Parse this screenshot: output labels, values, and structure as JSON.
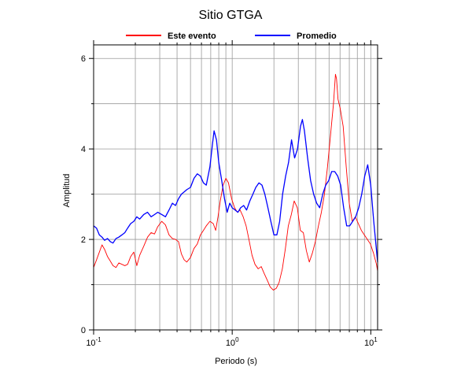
{
  "chart_data": {
    "type": "line",
    "title": "Sitio GTGA",
    "xlabel": "Periodo (s)",
    "ylabel": "Amplitud",
    "x_scale": "log",
    "xlim": [
      0.1,
      11.2
    ],
    "ylim": [
      0,
      6.3
    ],
    "grid": true,
    "legend_position": "top-center",
    "x_tick_labels": [
      {
        "base": "10",
        "exp": "-1",
        "value": 0.1
      },
      {
        "base": "10",
        "exp": "0",
        "value": 1
      },
      {
        "base": "10",
        "exp": "1",
        "value": 10
      }
    ],
    "y_tick_labels": [
      "0",
      "2",
      "4",
      "6"
    ],
    "y_tick_values": [
      0,
      2,
      4,
      6
    ],
    "series": [
      {
        "name": "Este evento",
        "color": "#ff0000",
        "points": [
          [
            0.1,
            1.38
          ],
          [
            0.105,
            1.55
          ],
          [
            0.11,
            1.72
          ],
          [
            0.115,
            1.88
          ],
          [
            0.12,
            1.78
          ],
          [
            0.126,
            1.62
          ],
          [
            0.132,
            1.52
          ],
          [
            0.138,
            1.42
          ],
          [
            0.145,
            1.38
          ],
          [
            0.152,
            1.48
          ],
          [
            0.16,
            1.45
          ],
          [
            0.168,
            1.42
          ],
          [
            0.176,
            1.45
          ],
          [
            0.185,
            1.62
          ],
          [
            0.195,
            1.72
          ],
          [
            0.205,
            1.42
          ],
          [
            0.215,
            1.65
          ],
          [
            0.23,
            1.85
          ],
          [
            0.245,
            2.05
          ],
          [
            0.26,
            2.15
          ],
          [
            0.275,
            2.12
          ],
          [
            0.29,
            2.28
          ],
          [
            0.31,
            2.4
          ],
          [
            0.33,
            2.32
          ],
          [
            0.35,
            2.1
          ],
          [
            0.37,
            2.02
          ],
          [
            0.39,
            2.0
          ],
          [
            0.41,
            1.95
          ],
          [
            0.43,
            1.68
          ],
          [
            0.45,
            1.55
          ],
          [
            0.47,
            1.5
          ],
          [
            0.5,
            1.6
          ],
          [
            0.53,
            1.8
          ],
          [
            0.56,
            1.9
          ],
          [
            0.59,
            2.1
          ],
          [
            0.62,
            2.2
          ],
          [
            0.65,
            2.3
          ],
          [
            0.69,
            2.4
          ],
          [
            0.73,
            2.35
          ],
          [
            0.76,
            2.2
          ],
          [
            0.79,
            2.5
          ],
          [
            0.82,
            2.85
          ],
          [
            0.86,
            3.2
          ],
          [
            0.9,
            3.35
          ],
          [
            0.94,
            3.25
          ],
          [
            0.99,
            2.9
          ],
          [
            1.04,
            2.7
          ],
          [
            1.09,
            2.6
          ],
          [
            1.14,
            2.65
          ],
          [
            1.2,
            2.5
          ],
          [
            1.26,
            2.3
          ],
          [
            1.32,
            2.0
          ],
          [
            1.39,
            1.65
          ],
          [
            1.46,
            1.45
          ],
          [
            1.54,
            1.35
          ],
          [
            1.62,
            1.4
          ],
          [
            1.7,
            1.25
          ],
          [
            1.79,
            1.1
          ],
          [
            1.88,
            0.95
          ],
          [
            1.98,
            0.88
          ],
          [
            2.08,
            0.92
          ],
          [
            2.18,
            1.05
          ],
          [
            2.3,
            1.35
          ],
          [
            2.42,
            1.8
          ],
          [
            2.54,
            2.3
          ],
          [
            2.67,
            2.55
          ],
          [
            2.8,
            2.85
          ],
          [
            2.95,
            2.7
          ],
          [
            3.1,
            2.2
          ],
          [
            3.26,
            2.15
          ],
          [
            3.43,
            1.75
          ],
          [
            3.6,
            1.5
          ],
          [
            3.79,
            1.7
          ],
          [
            3.98,
            1.95
          ],
          [
            4.19,
            2.3
          ],
          [
            4.4,
            2.6
          ],
          [
            4.63,
            3.0
          ],
          [
            4.87,
            3.6
          ],
          [
            5.12,
            4.3
          ],
          [
            5.38,
            5.0
          ],
          [
            5.56,
            5.65
          ],
          [
            5.66,
            5.55
          ],
          [
            5.8,
            5.1
          ],
          [
            6.01,
            4.9
          ],
          [
            6.32,
            4.5
          ],
          [
            6.65,
            3.6
          ],
          [
            6.99,
            2.8
          ],
          [
            7.35,
            2.4
          ],
          [
            7.73,
            2.5
          ],
          [
            8.13,
            2.35
          ],
          [
            8.55,
            2.2
          ],
          [
            8.99,
            2.1
          ],
          [
            9.45,
            2.0
          ],
          [
            9.94,
            1.9
          ],
          [
            10.45,
            1.7
          ],
          [
            10.99,
            1.45
          ],
          [
            11.2,
            1.3
          ]
        ]
      },
      {
        "name": "Promedio",
        "color": "#0000ff",
        "points": [
          [
            0.1,
            2.3
          ],
          [
            0.105,
            2.25
          ],
          [
            0.11,
            2.1
          ],
          [
            0.115,
            2.05
          ],
          [
            0.12,
            1.98
          ],
          [
            0.126,
            2.02
          ],
          [
            0.132,
            1.95
          ],
          [
            0.138,
            1.92
          ],
          [
            0.145,
            2.02
          ],
          [
            0.152,
            2.05
          ],
          [
            0.16,
            2.1
          ],
          [
            0.168,
            2.15
          ],
          [
            0.176,
            2.25
          ],
          [
            0.185,
            2.35
          ],
          [
            0.195,
            2.4
          ],
          [
            0.205,
            2.5
          ],
          [
            0.215,
            2.45
          ],
          [
            0.23,
            2.55
          ],
          [
            0.245,
            2.6
          ],
          [
            0.26,
            2.5
          ],
          [
            0.275,
            2.55
          ],
          [
            0.29,
            2.6
          ],
          [
            0.31,
            2.55
          ],
          [
            0.33,
            2.5
          ],
          [
            0.35,
            2.65
          ],
          [
            0.37,
            2.8
          ],
          [
            0.39,
            2.75
          ],
          [
            0.41,
            2.9
          ],
          [
            0.43,
            3.0
          ],
          [
            0.45,
            3.05
          ],
          [
            0.47,
            3.1
          ],
          [
            0.5,
            3.15
          ],
          [
            0.53,
            3.35
          ],
          [
            0.56,
            3.45
          ],
          [
            0.59,
            3.4
          ],
          [
            0.62,
            3.25
          ],
          [
            0.65,
            3.2
          ],
          [
            0.69,
            3.6
          ],
          [
            0.72,
            4.1
          ],
          [
            0.74,
            4.4
          ],
          [
            0.77,
            4.2
          ],
          [
            0.8,
            3.7
          ],
          [
            0.84,
            3.3
          ],
          [
            0.88,
            2.9
          ],
          [
            0.92,
            2.6
          ],
          [
            0.96,
            2.8
          ],
          [
            1.0,
            2.7
          ],
          [
            1.05,
            2.65
          ],
          [
            1.1,
            2.6
          ],
          [
            1.15,
            2.7
          ],
          [
            1.21,
            2.75
          ],
          [
            1.27,
            2.65
          ],
          [
            1.34,
            2.85
          ],
          [
            1.41,
            3.0
          ],
          [
            1.48,
            3.15
          ],
          [
            1.56,
            3.25
          ],
          [
            1.64,
            3.2
          ],
          [
            1.72,
            3.0
          ],
          [
            1.81,
            2.7
          ],
          [
            1.9,
            2.4
          ],
          [
            2.0,
            2.1
          ],
          [
            2.1,
            2.1
          ],
          [
            2.2,
            2.4
          ],
          [
            2.31,
            3.0
          ],
          [
            2.43,
            3.4
          ],
          [
            2.55,
            3.7
          ],
          [
            2.68,
            4.2
          ],
          [
            2.82,
            3.8
          ],
          [
            2.96,
            4.0
          ],
          [
            3.11,
            4.5
          ],
          [
            3.21,
            4.65
          ],
          [
            3.32,
            4.4
          ],
          [
            3.5,
            3.8
          ],
          [
            3.68,
            3.3
          ],
          [
            3.87,
            3.0
          ],
          [
            4.07,
            2.8
          ],
          [
            4.28,
            2.7
          ],
          [
            4.5,
            3.0
          ],
          [
            4.73,
            3.2
          ],
          [
            4.97,
            3.3
          ],
          [
            5.22,
            3.5
          ],
          [
            5.49,
            3.5
          ],
          [
            5.77,
            3.4
          ],
          [
            6.06,
            3.2
          ],
          [
            6.37,
            2.7
          ],
          [
            6.7,
            2.3
          ],
          [
            7.04,
            2.3
          ],
          [
            7.4,
            2.4
          ],
          [
            7.78,
            2.5
          ],
          [
            8.18,
            2.7
          ],
          [
            8.6,
            3.0
          ],
          [
            9.04,
            3.4
          ],
          [
            9.5,
            3.65
          ],
          [
            9.99,
            3.2
          ],
          [
            10.5,
            2.4
          ],
          [
            11.04,
            1.7
          ],
          [
            11.2,
            1.5
          ]
        ]
      }
    ]
  }
}
